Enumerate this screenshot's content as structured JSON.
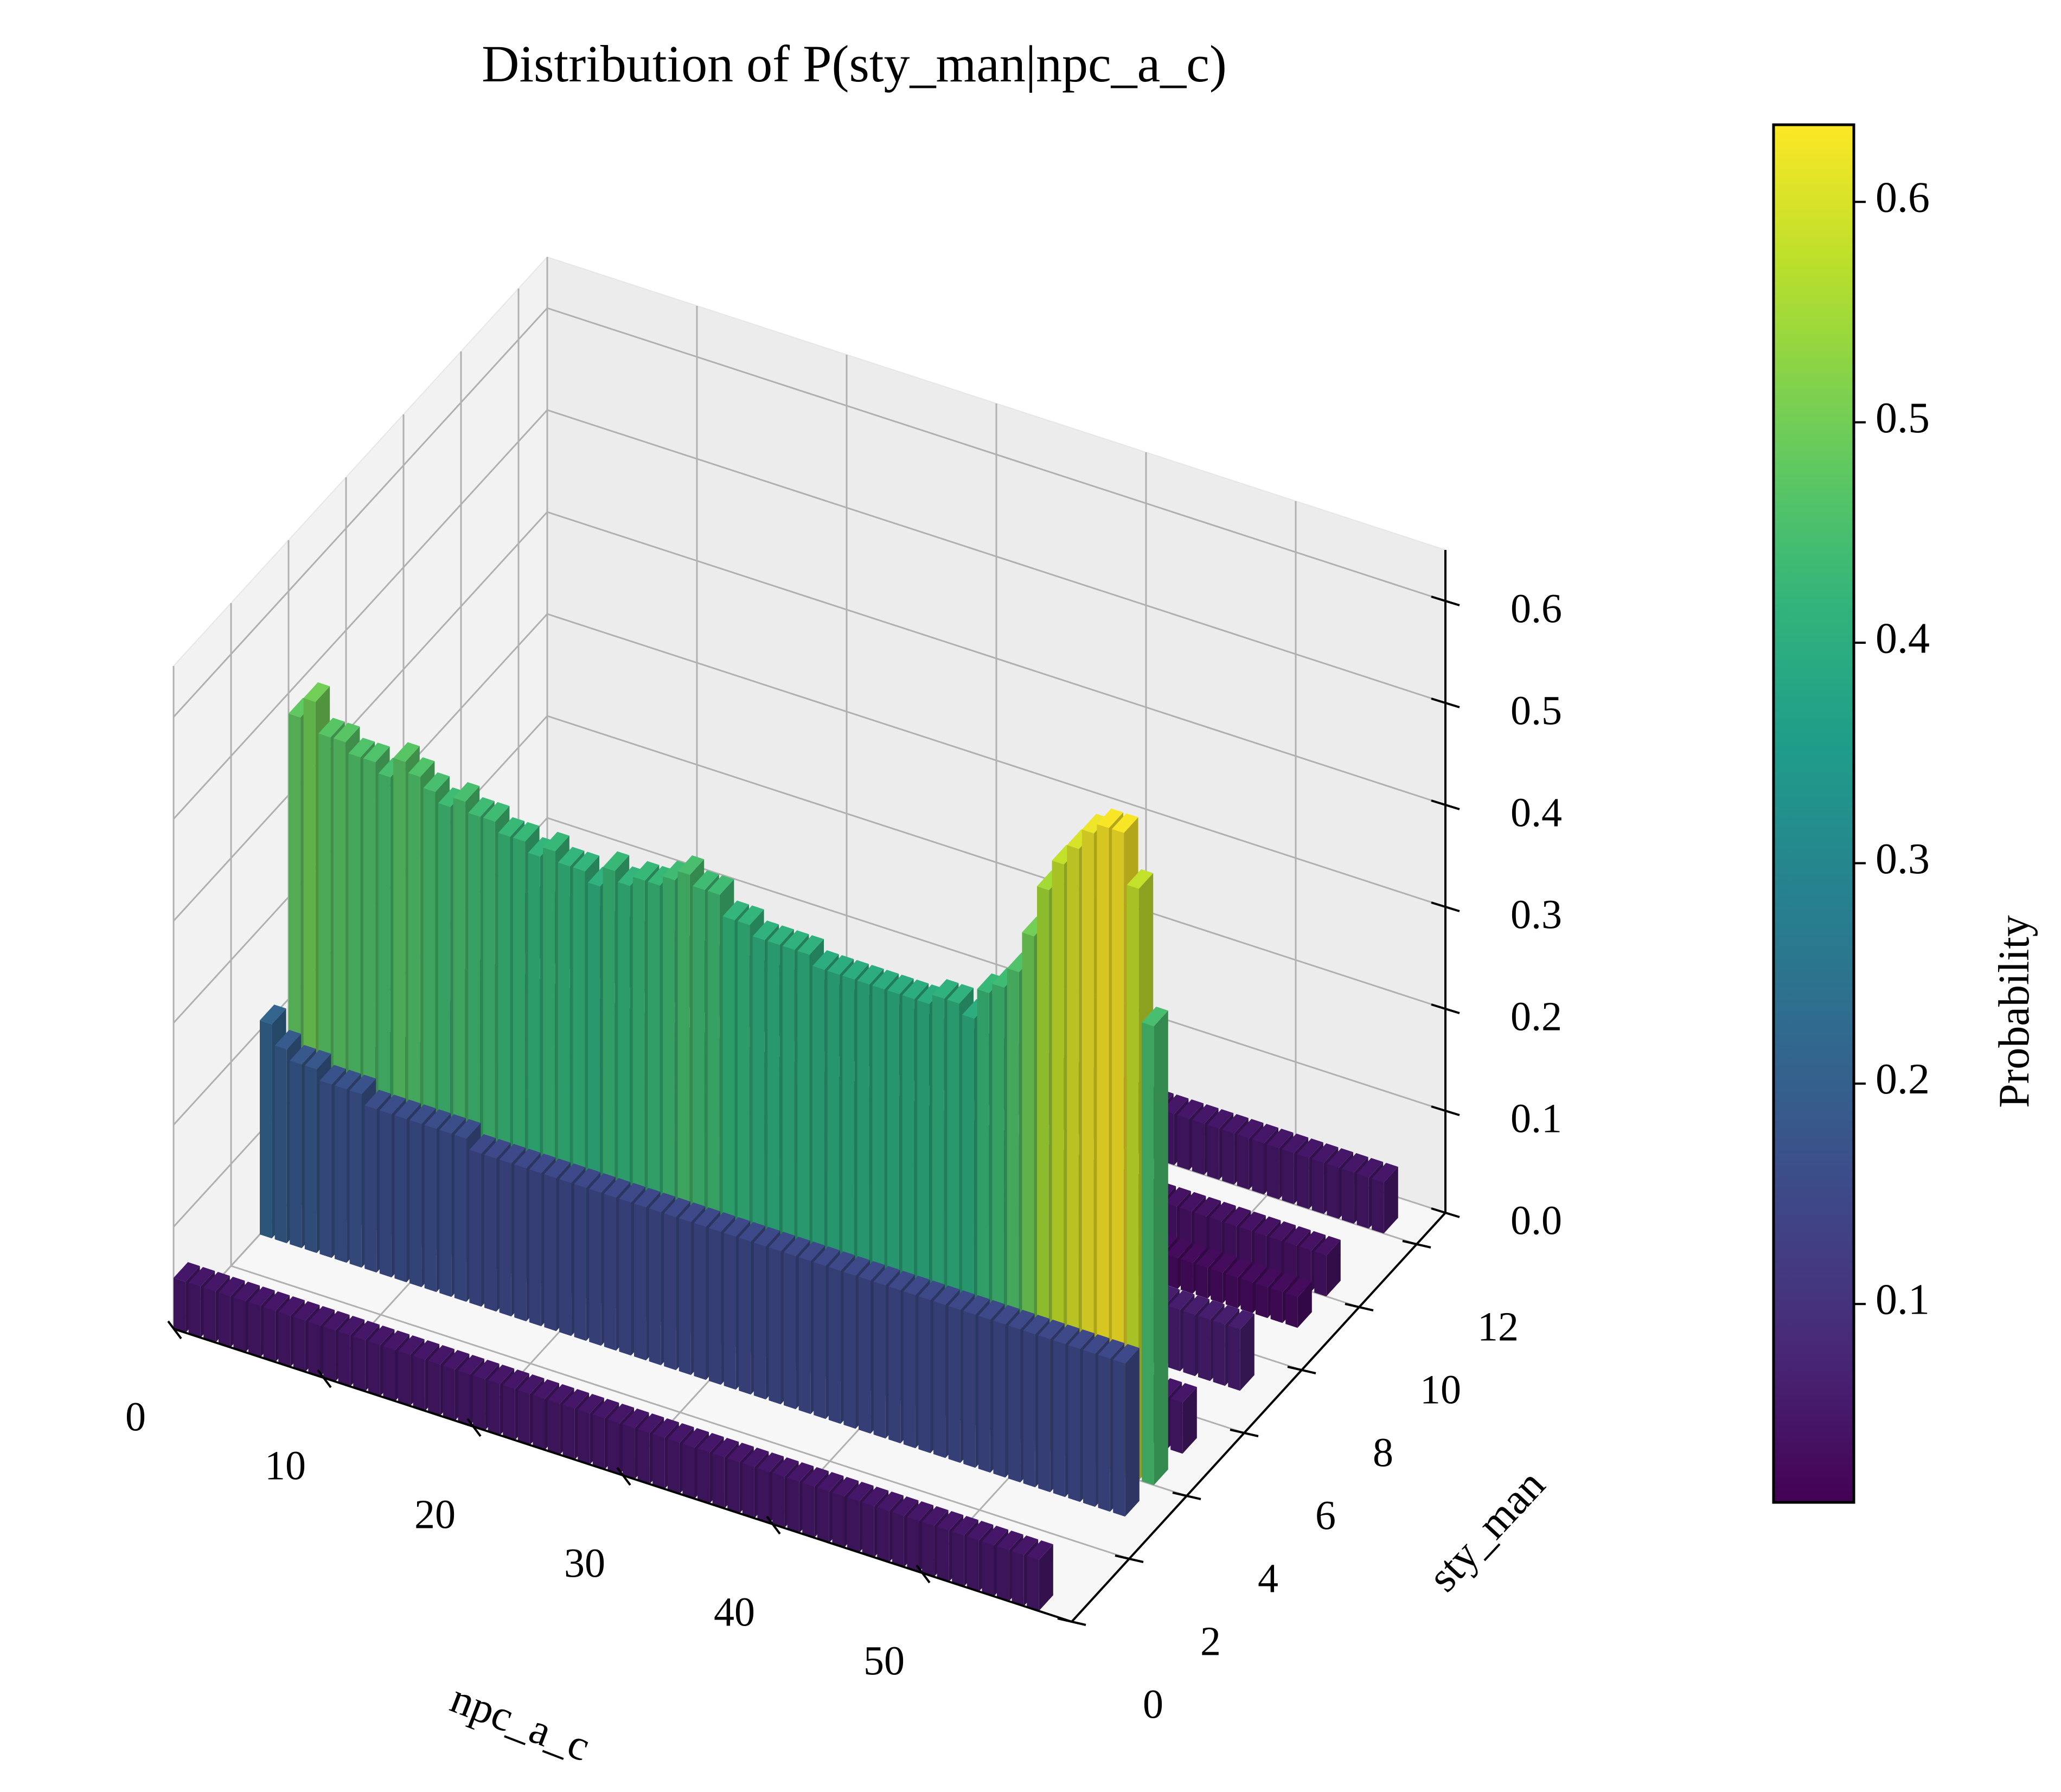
{
  "chart_data": {
    "type": "bar3d",
    "title": "Distribution of P(sty_man|npc_a_c)",
    "xlabel": "npc_a_c",
    "ylabel": "sty_man",
    "zlabel": "",
    "xlim": [
      0,
      60
    ],
    "ylim": [
      0,
      13
    ],
    "zlim": [
      0,
      0.65
    ],
    "x_ticks": [
      0,
      10,
      20,
      30,
      40,
      50
    ],
    "y_ticks": [
      0,
      2,
      4,
      6,
      8,
      10,
      12
    ],
    "z_ticks": [
      0.0,
      0.1,
      0.2,
      0.3,
      0.4,
      0.5,
      0.6
    ],
    "x_tick_labels": [
      "0",
      "10",
      "20",
      "30",
      "40",
      "50"
    ],
    "y_tick_labels": [
      "0",
      "2",
      "4",
      "6",
      "8",
      "10",
      "12"
    ],
    "z_tick_labels": [
      "0.0",
      "0.1",
      "0.2",
      "0.3",
      "0.4",
      "0.5",
      "0.6"
    ],
    "colormap": "viridis",
    "colorbar": {
      "label": "Probability",
      "range": [
        0.01,
        0.635
      ],
      "ticks": [
        0.1,
        0.2,
        0.3,
        0.4,
        0.5,
        0.6
      ],
      "tick_labels": [
        "0.1",
        "0.2",
        "0.3",
        "0.4",
        "0.5",
        "0.6"
      ]
    },
    "grid": true,
    "y_categories": [
      0,
      3,
      4,
      5,
      7,
      9,
      10,
      12
    ],
    "series": [
      {
        "y": 0,
        "values": [
          0.05,
          0.05,
          0.05,
          0.05,
          0.05,
          0.05,
          0.05,
          0.05,
          0.05,
          0.05,
          0.05,
          0.05,
          0.05,
          0.05,
          0.05,
          0.05,
          0.05,
          0.05,
          0.05,
          0.05,
          0.05,
          0.05,
          0.05,
          0.05,
          0.05,
          0.05,
          0.05,
          0.05,
          0.05,
          0.05,
          0.05,
          0.05,
          0.05,
          0.05,
          0.05,
          0.05,
          0.05,
          0.05,
          0.05,
          0.05,
          0.05,
          0.05,
          0.05,
          0.05,
          0.05,
          0.05,
          0.05,
          0.05,
          0.05,
          0.05,
          0.05,
          0.05,
          0.05,
          0.05,
          0.05,
          0.05,
          0.05,
          0.05
        ]
      },
      {
        "y": 3,
        "values": [
          0.21,
          0.19,
          0.18,
          0.18,
          0.17,
          0.17,
          0.17,
          0.16,
          0.16,
          0.16,
          0.16,
          0.16,
          0.16,
          0.16,
          0.15,
          0.15,
          0.15,
          0.15,
          0.15,
          0.15,
          0.15,
          0.15,
          0.15,
          0.15,
          0.15,
          0.15,
          0.15,
          0.15,
          0.15,
          0.15,
          0.15,
          0.15,
          0.15,
          0.15,
          0.15,
          0.15,
          0.15,
          0.15,
          0.15,
          0.15,
          0.15,
          0.15,
          0.15,
          0.15,
          0.15,
          0.15,
          0.15,
          0.15,
          0.15,
          0.15,
          0.15,
          0.15,
          0.15,
          0.15,
          0.15,
          0.15,
          0.15,
          0.15
        ]
      },
      {
        "y": 4,
        "values": [
          0.48,
          0.5,
          0.47,
          0.47,
          0.46,
          0.46,
          0.45,
          0.47,
          0.46,
          0.45,
          0.44,
          0.45,
          0.44,
          0.44,
          0.43,
          0.43,
          0.42,
          0.43,
          0.42,
          0.42,
          0.41,
          0.43,
          0.42,
          0.43,
          0.43,
          0.44,
          0.45,
          0.44,
          0.44,
          0.42,
          0.42,
          0.41,
          0.41,
          0.41,
          0.41,
          0.4,
          0.4,
          0.4,
          0.4,
          0.4,
          0.4,
          0.4,
          0.4,
          0.41,
          0.41,
          0.4,
          0.43,
          0.44,
          0.46,
          0.5,
          0.55,
          0.58,
          0.6,
          0.62,
          0.63,
          0.63,
          0.58,
          0.45
        ]
      },
      {
        "y": 5,
        "values": [
          0.05,
          0.05,
          0.05,
          0.05,
          0.05,
          0.05,
          0.05,
          0.05,
          0.05,
          0.05,
          0.05,
          0.05,
          0.05,
          0.05,
          0.05,
          0.05,
          0.05,
          0.05,
          0.05,
          0.05,
          0.05,
          0.05,
          0.05,
          0.05,
          0.05,
          0.05,
          0.05,
          0.05,
          0.05,
          0.05,
          0.05,
          0.05,
          0.05,
          0.05,
          0.05,
          0.05,
          0.05,
          0.05,
          0.05,
          0.05,
          0.05,
          0.05,
          0.05,
          0.05,
          0.05,
          0.05,
          0.05,
          0.05,
          0.05,
          0.05,
          0.05,
          0.05,
          0.05,
          0.05,
          0.05,
          0.05,
          0.05,
          0.05
        ]
      },
      {
        "y": 7,
        "values": [
          0.06,
          0.06,
          0.06,
          0.06,
          0.06,
          0.06,
          0.06,
          0.06,
          0.06,
          0.06,
          0.06,
          0.06,
          0.06,
          0.06,
          0.06,
          0.06,
          0.06,
          0.06,
          0.06,
          0.06,
          0.06,
          0.06,
          0.06,
          0.06,
          0.06,
          0.06,
          0.06,
          0.06,
          0.06,
          0.06,
          0.06,
          0.06,
          0.06,
          0.06,
          0.06,
          0.06,
          0.06,
          0.06,
          0.06,
          0.06,
          0.06,
          0.06,
          0.06,
          0.06,
          0.06,
          0.06,
          0.06,
          0.06,
          0.06,
          0.06,
          0.06,
          0.06,
          0.06,
          0.06,
          0.06,
          0.06,
          0.06,
          0.06
        ]
      },
      {
        "y": 9,
        "values": [
          0.03,
          0.03,
          0.03,
          0.03,
          0.03,
          0.03,
          0.03,
          0.03,
          0.03,
          0.03,
          0.03,
          0.03,
          0.03,
          0.03,
          0.03,
          0.03,
          0.03,
          0.03,
          0.03,
          0.03,
          0.03,
          0.03,
          0.03,
          0.03,
          0.03,
          0.03,
          0.03,
          0.03,
          0.03,
          0.03,
          0.03,
          0.03,
          0.03,
          0.03,
          0.03,
          0.03,
          0.03,
          0.03,
          0.03,
          0.03,
          0.03,
          0.03,
          0.03,
          0.03,
          0.03,
          0.03,
          0.03,
          0.03,
          0.03,
          0.03,
          0.03,
          0.03,
          0.03,
          0.03,
          0.03,
          0.03,
          0.03,
          0.03
        ]
      },
      {
        "y": 10,
        "values": [
          0.04,
          0.04,
          0.04,
          0.04,
          0.04,
          0.04,
          0.04,
          0.04,
          0.04,
          0.04,
          0.04,
          0.04,
          0.04,
          0.04,
          0.04,
          0.04,
          0.04,
          0.04,
          0.04,
          0.04,
          0.04,
          0.04,
          0.04,
          0.04,
          0.04,
          0.04,
          0.04,
          0.04,
          0.04,
          0.04,
          0.04,
          0.04,
          0.04,
          0.04,
          0.04,
          0.04,
          0.04,
          0.04,
          0.04,
          0.04,
          0.04,
          0.04,
          0.04,
          0.04,
          0.04,
          0.04,
          0.04,
          0.04,
          0.04,
          0.04,
          0.04,
          0.04,
          0.04,
          0.04,
          0.04,
          0.04,
          0.04,
          0.04
        ]
      },
      {
        "y": 12,
        "values": [
          0.05,
          0.05,
          0.05,
          0.05,
          0.05,
          0.05,
          0.05,
          0.05,
          0.05,
          0.05,
          0.05,
          0.05,
          0.05,
          0.05,
          0.05,
          0.05,
          0.05,
          0.05,
          0.05,
          0.05,
          0.05,
          0.05,
          0.05,
          0.05,
          0.05,
          0.05,
          0.05,
          0.05,
          0.05,
          0.05,
          0.05,
          0.05,
          0.05,
          0.05,
          0.05,
          0.05,
          0.05,
          0.05,
          0.05,
          0.05,
          0.05,
          0.05,
          0.05,
          0.05,
          0.05,
          0.05,
          0.05,
          0.05,
          0.05,
          0.05,
          0.05,
          0.05,
          0.05,
          0.05,
          0.05,
          0.05,
          0.05,
          0.05
        ]
      }
    ]
  }
}
